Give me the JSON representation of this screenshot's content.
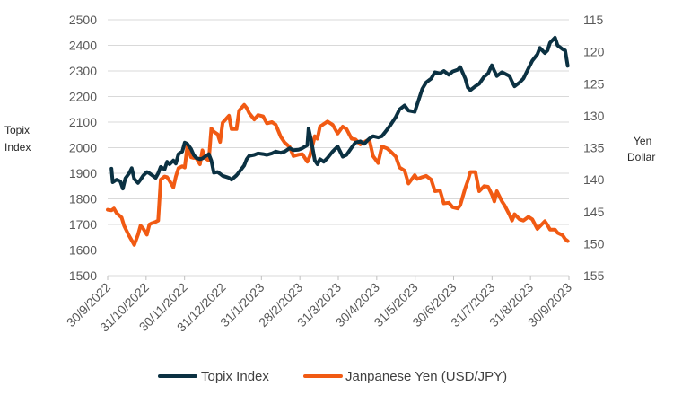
{
  "chart_data": {
    "type": "line",
    "title": "",
    "ylabel_left": [
      "Topix",
      "Index"
    ],
    "ylabel_right": [
      "Yen",
      "Dollar"
    ],
    "left_axis": {
      "min": 1500,
      "max": 2500,
      "step": 100,
      "ticks": [
        "1500",
        "1600",
        "1700",
        "1800",
        "1900",
        "2000",
        "2100",
        "2200",
        "2300",
        "2400",
        "2500"
      ]
    },
    "right_axis": {
      "min": 115,
      "max": 155,
      "step": 5,
      "inverted": true,
      "ticks": [
        "115",
        "120",
        "125",
        "130",
        "135",
        "140",
        "145",
        "150",
        "155"
      ]
    },
    "x_range": [
      "2022-09-30",
      "2023-09-30"
    ],
    "x_ticks": [
      "30/9/2022",
      "31/10/2022",
      "30/11/2022",
      "31/12/2022",
      "31/1/2023",
      "28/2/2023",
      "31/3/2023",
      "30/4/2023",
      "31/5/2023",
      "30/6/2023",
      "31/7/2023",
      "31/8/2023",
      "30/9/2023"
    ],
    "legend_position": "bottom",
    "grid": "horizontal",
    "series": [
      {
        "name": "Topix Index",
        "axis": "left",
        "color": "#0b3142",
        "points": [
          [
            "2022-10-03",
            1918
          ],
          [
            "2022-10-04",
            1865
          ],
          [
            "2022-10-07",
            1875
          ],
          [
            "2022-10-10",
            1868
          ],
          [
            "2022-10-12",
            1840
          ],
          [
            "2022-10-14",
            1880
          ],
          [
            "2022-10-17",
            1900
          ],
          [
            "2022-10-19",
            1920
          ],
          [
            "2022-10-21",
            1878
          ],
          [
            "2022-10-24",
            1862
          ],
          [
            "2022-10-26",
            1875
          ],
          [
            "2022-10-28",
            1890
          ],
          [
            "2022-10-31",
            1905
          ],
          [
            "2022-11-02",
            1900
          ],
          [
            "2022-11-04",
            1893
          ],
          [
            "2022-11-07",
            1882
          ],
          [
            "2022-11-09",
            1900
          ],
          [
            "2022-11-11",
            1925
          ],
          [
            "2022-11-14",
            1915
          ],
          [
            "2022-11-16",
            1945
          ],
          [
            "2022-11-18",
            1935
          ],
          [
            "2022-11-21",
            1950
          ],
          [
            "2022-11-23",
            1938
          ],
          [
            "2022-11-25",
            1975
          ],
          [
            "2022-11-28",
            1985
          ],
          [
            "2022-11-30",
            2020
          ],
          [
            "2022-12-02",
            2015
          ],
          [
            "2022-12-05",
            1995
          ],
          [
            "2022-12-07",
            1972
          ],
          [
            "2022-12-09",
            1960
          ],
          [
            "2022-12-12",
            1955
          ],
          [
            "2022-12-14",
            1958
          ],
          [
            "2022-12-16",
            1965
          ],
          [
            "2022-12-19",
            1975
          ],
          [
            "2022-12-21",
            1950
          ],
          [
            "2022-12-23",
            1902
          ],
          [
            "2022-12-26",
            1905
          ],
          [
            "2022-12-28",
            1898
          ],
          [
            "2022-12-30",
            1890
          ],
          [
            "2023-01-04",
            1882
          ],
          [
            "2023-01-06",
            1875
          ],
          [
            "2023-01-10",
            1892
          ],
          [
            "2023-01-12",
            1905
          ],
          [
            "2023-01-16",
            1930
          ],
          [
            "2023-01-18",
            1955
          ],
          [
            "2023-01-20",
            1968
          ],
          [
            "2023-01-24",
            1972
          ],
          [
            "2023-01-27",
            1978
          ],
          [
            "2023-01-31",
            1975
          ],
          [
            "2023-02-03",
            1972
          ],
          [
            "2023-02-07",
            1978
          ],
          [
            "2023-02-10",
            1985
          ],
          [
            "2023-02-14",
            1980
          ],
          [
            "2023-02-17",
            1985
          ],
          [
            "2023-02-21",
            1998
          ],
          [
            "2023-02-24",
            1990
          ],
          [
            "2023-02-28",
            1992
          ],
          [
            "2023-03-03",
            1998
          ],
          [
            "2023-03-07",
            2010
          ],
          [
            "2023-03-08",
            2075
          ],
          [
            "2023-03-10",
            2030
          ],
          [
            "2023-03-13",
            1950
          ],
          [
            "2023-03-15",
            1935
          ],
          [
            "2023-03-17",
            1955
          ],
          [
            "2023-03-20",
            1945
          ],
          [
            "2023-03-23",
            1960
          ],
          [
            "2023-03-27",
            1985
          ],
          [
            "2023-03-31",
            2005
          ],
          [
            "2023-04-04",
            1965
          ],
          [
            "2023-04-07",
            1972
          ],
          [
            "2023-04-11",
            2000
          ],
          [
            "2023-04-14",
            2020
          ],
          [
            "2023-04-18",
            2025
          ],
          [
            "2023-04-21",
            2015
          ],
          [
            "2023-04-25",
            2035
          ],
          [
            "2023-04-28",
            2045
          ],
          [
            "2023-05-02",
            2040
          ],
          [
            "2023-05-05",
            2045
          ],
          [
            "2023-05-09",
            2070
          ],
          [
            "2023-05-12",
            2090
          ],
          [
            "2023-05-16",
            2120
          ],
          [
            "2023-05-19",
            2150
          ],
          [
            "2023-05-23",
            2165
          ],
          [
            "2023-05-26",
            2145
          ],
          [
            "2023-05-31",
            2140
          ],
          [
            "2023-06-02",
            2170
          ],
          [
            "2023-06-06",
            2230
          ],
          [
            "2023-06-09",
            2255
          ],
          [
            "2023-06-13",
            2270
          ],
          [
            "2023-06-16",
            2295
          ],
          [
            "2023-06-20",
            2290
          ],
          [
            "2023-06-23",
            2300
          ],
          [
            "2023-06-27",
            2285
          ],
          [
            "2023-06-30",
            2298
          ],
          [
            "2023-07-04",
            2305
          ],
          [
            "2023-07-06",
            2315
          ],
          [
            "2023-07-10",
            2270
          ],
          [
            "2023-07-12",
            2235
          ],
          [
            "2023-07-14",
            2225
          ],
          [
            "2023-07-18",
            2240
          ],
          [
            "2023-07-21",
            2250
          ],
          [
            "2023-07-25",
            2278
          ],
          [
            "2023-07-28",
            2290
          ],
          [
            "2023-07-31",
            2322
          ],
          [
            "2023-08-02",
            2300
          ],
          [
            "2023-08-04",
            2280
          ],
          [
            "2023-08-08",
            2295
          ],
          [
            "2023-08-10",
            2290
          ],
          [
            "2023-08-14",
            2280
          ],
          [
            "2023-08-16",
            2258
          ],
          [
            "2023-08-18",
            2240
          ],
          [
            "2023-08-22",
            2255
          ],
          [
            "2023-08-25",
            2270
          ],
          [
            "2023-08-29",
            2310
          ],
          [
            "2023-09-01",
            2340
          ],
          [
            "2023-09-05",
            2365
          ],
          [
            "2023-09-07",
            2390
          ],
          [
            "2023-09-11",
            2370
          ],
          [
            "2023-09-13",
            2380
          ],
          [
            "2023-09-15",
            2410
          ],
          [
            "2023-09-19",
            2430
          ],
          [
            "2023-09-21",
            2400
          ],
          [
            "2023-09-25",
            2385
          ],
          [
            "2023-09-27",
            2380
          ],
          [
            "2023-09-29",
            2320
          ]
        ]
      },
      {
        "name": "Janpanese Yen (USD/JPY)",
        "axis": "right",
        "color": "#f15a13",
        "points": [
          [
            "2022-09-30",
            144.7
          ],
          [
            "2022-10-03",
            144.8
          ],
          [
            "2022-10-05",
            144.5
          ],
          [
            "2022-10-07",
            145.2
          ],
          [
            "2022-10-11",
            145.9
          ],
          [
            "2022-10-13",
            147.2
          ],
          [
            "2022-10-17",
            148.8
          ],
          [
            "2022-10-19",
            149.5
          ],
          [
            "2022-10-21",
            150.2
          ],
          [
            "2022-10-24",
            148.6
          ],
          [
            "2022-10-26",
            147.2
          ],
          [
            "2022-10-28",
            147.6
          ],
          [
            "2022-10-31",
            148.6
          ],
          [
            "2022-11-02",
            147.0
          ],
          [
            "2022-11-04",
            146.8
          ],
          [
            "2022-11-07",
            146.6
          ],
          [
            "2022-11-09",
            146.4
          ],
          [
            "2022-11-11",
            140.0
          ],
          [
            "2022-11-14",
            139.5
          ],
          [
            "2022-11-16",
            139.6
          ],
          [
            "2022-11-18",
            140.2
          ],
          [
            "2022-11-21",
            141.2
          ],
          [
            "2022-11-23",
            139.5
          ],
          [
            "2022-11-25",
            138.2
          ],
          [
            "2022-11-28",
            137.9
          ],
          [
            "2022-11-30",
            138.1
          ],
          [
            "2022-12-02",
            134.8
          ],
          [
            "2022-12-05",
            136.5
          ],
          [
            "2022-12-07",
            136.6
          ],
          [
            "2022-12-09",
            136.6
          ],
          [
            "2022-12-12",
            137.6
          ],
          [
            "2022-12-14",
            135.4
          ],
          [
            "2022-12-16",
            136.6
          ],
          [
            "2022-12-19",
            137.0
          ],
          [
            "2022-12-21",
            132.0
          ],
          [
            "2022-12-23",
            132.5
          ],
          [
            "2022-12-26",
            132.9
          ],
          [
            "2022-12-28",
            134.1
          ],
          [
            "2022-12-30",
            131.1
          ],
          [
            "2023-01-04",
            130.0
          ],
          [
            "2023-01-06",
            132.1
          ],
          [
            "2023-01-10",
            132.1
          ],
          [
            "2023-01-12",
            129.2
          ],
          [
            "2023-01-16",
            128.3
          ],
          [
            "2023-01-18",
            128.8
          ],
          [
            "2023-01-20",
            129.6
          ],
          [
            "2023-01-24",
            130.6
          ],
          [
            "2023-01-27",
            129.9
          ],
          [
            "2023-01-31",
            130.1
          ],
          [
            "2023-02-03",
            131.2
          ],
          [
            "2023-02-07",
            131.0
          ],
          [
            "2023-02-10",
            131.4
          ],
          [
            "2023-02-14",
            133.3
          ],
          [
            "2023-02-17",
            134.2
          ],
          [
            "2023-02-21",
            134.9
          ],
          [
            "2023-02-24",
            136.3
          ],
          [
            "2023-02-28",
            136.1
          ],
          [
            "2023-03-03",
            136.0
          ],
          [
            "2023-03-07",
            137.2
          ],
          [
            "2023-03-09",
            136.3
          ],
          [
            "2023-03-13",
            133.2
          ],
          [
            "2023-03-15",
            133.6
          ],
          [
            "2023-03-17",
            131.7
          ],
          [
            "2023-03-20",
            131.3
          ],
          [
            "2023-03-23",
            130.9
          ],
          [
            "2023-03-27",
            131.4
          ],
          [
            "2023-03-31",
            132.8
          ],
          [
            "2023-04-04",
            131.7
          ],
          [
            "2023-04-07",
            132.1
          ],
          [
            "2023-04-11",
            133.6
          ],
          [
            "2023-04-14",
            133.7
          ],
          [
            "2023-04-18",
            134.5
          ],
          [
            "2023-04-21",
            134.1
          ],
          [
            "2023-04-25",
            133.7
          ],
          [
            "2023-04-28",
            136.3
          ],
          [
            "2023-05-02",
            137.4
          ],
          [
            "2023-05-05",
            134.8
          ],
          [
            "2023-05-09",
            135.1
          ],
          [
            "2023-05-12",
            135.6
          ],
          [
            "2023-05-16",
            136.4
          ],
          [
            "2023-05-19",
            138.1
          ],
          [
            "2023-05-23",
            138.6
          ],
          [
            "2023-05-26",
            140.6
          ],
          [
            "2023-05-31",
            139.3
          ],
          [
            "2023-06-02",
            139.9
          ],
          [
            "2023-06-06",
            139.6
          ],
          [
            "2023-06-09",
            139.4
          ],
          [
            "2023-06-13",
            140.0
          ],
          [
            "2023-06-16",
            141.8
          ],
          [
            "2023-06-20",
            141.7
          ],
          [
            "2023-06-23",
            143.7
          ],
          [
            "2023-06-27",
            143.6
          ],
          [
            "2023-06-30",
            144.3
          ],
          [
            "2023-07-04",
            144.5
          ],
          [
            "2023-07-06",
            144.0
          ],
          [
            "2023-07-10",
            141.3
          ],
          [
            "2023-07-12",
            140.2
          ],
          [
            "2023-07-14",
            138.8
          ],
          [
            "2023-07-18",
            138.8
          ],
          [
            "2023-07-21",
            141.8
          ],
          [
            "2023-07-25",
            141.0
          ],
          [
            "2023-07-28",
            141.1
          ],
          [
            "2023-07-31",
            142.3
          ],
          [
            "2023-08-02",
            143.4
          ],
          [
            "2023-08-04",
            141.8
          ],
          [
            "2023-08-08",
            143.4
          ],
          [
            "2023-08-10",
            144.0
          ],
          [
            "2023-08-14",
            145.5
          ],
          [
            "2023-08-16",
            146.4
          ],
          [
            "2023-08-18",
            145.4
          ],
          [
            "2023-08-22",
            146.2
          ],
          [
            "2023-08-25",
            146.4
          ],
          [
            "2023-08-29",
            145.8
          ],
          [
            "2023-09-01",
            146.2
          ],
          [
            "2023-09-05",
            147.7
          ],
          [
            "2023-09-07",
            147.3
          ],
          [
            "2023-09-11",
            146.5
          ],
          [
            "2023-09-13",
            147.1
          ],
          [
            "2023-09-15",
            147.8
          ],
          [
            "2023-09-19",
            147.8
          ],
          [
            "2023-09-21",
            148.3
          ],
          [
            "2023-09-25",
            148.7
          ],
          [
            "2023-09-27",
            149.3
          ],
          [
            "2023-09-29",
            149.6
          ]
        ]
      }
    ]
  }
}
